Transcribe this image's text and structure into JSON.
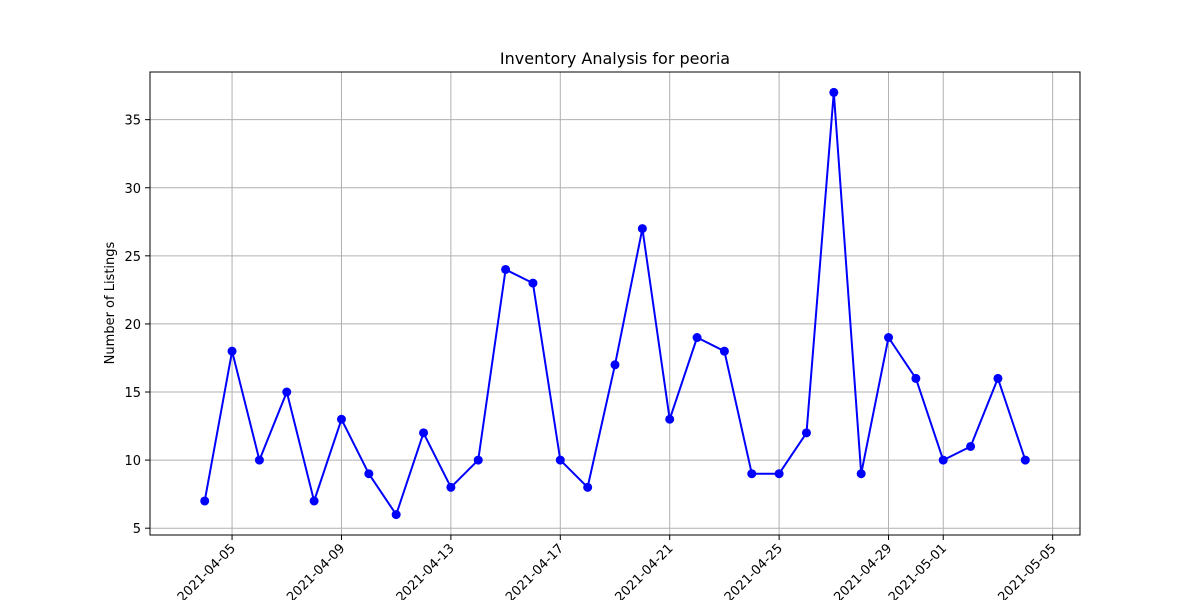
{
  "chart_data": {
    "type": "line",
    "title": "Inventory Analysis for peoria",
    "xlabel": "",
    "ylabel": "Number of Listings",
    "x_type": "date",
    "xlim": [
      "2021-04-02",
      "2021-05-06"
    ],
    "ylim": [
      4.5,
      38.5
    ],
    "x_ticks": [
      "2021-04-05",
      "2021-04-09",
      "2021-04-13",
      "2021-04-17",
      "2021-04-21",
      "2021-04-25",
      "2021-04-29",
      "2021-05-01",
      "2021-05-05"
    ],
    "y_ticks": [
      5,
      10,
      15,
      20,
      25,
      30,
      35
    ],
    "grid": true,
    "legend": false,
    "series": [
      {
        "color": "#0000ff",
        "marker": "circle",
        "points": [
          {
            "x": "2021-04-04",
            "y": 7
          },
          {
            "x": "2021-04-05",
            "y": 18
          },
          {
            "x": "2021-04-06",
            "y": 10
          },
          {
            "x": "2021-04-07",
            "y": 15
          },
          {
            "x": "2021-04-08",
            "y": 7
          },
          {
            "x": "2021-04-09",
            "y": 13
          },
          {
            "x": "2021-04-10",
            "y": 9
          },
          {
            "x": "2021-04-11",
            "y": 6
          },
          {
            "x": "2021-04-12",
            "y": 12
          },
          {
            "x": "2021-04-13",
            "y": 8
          },
          {
            "x": "2021-04-14",
            "y": 10
          },
          {
            "x": "2021-04-15",
            "y": 24
          },
          {
            "x": "2021-04-16",
            "y": 23
          },
          {
            "x": "2021-04-17",
            "y": 10
          },
          {
            "x": "2021-04-18",
            "y": 8
          },
          {
            "x": "2021-04-19",
            "y": 17
          },
          {
            "x": "2021-04-20",
            "y": 27
          },
          {
            "x": "2021-04-21",
            "y": 13
          },
          {
            "x": "2021-04-22",
            "y": 19
          },
          {
            "x": "2021-04-23",
            "y": 18
          },
          {
            "x": "2021-04-24",
            "y": 9
          },
          {
            "x": "2021-04-25",
            "y": 9
          },
          {
            "x": "2021-04-26",
            "y": 12
          },
          {
            "x": "2021-04-27",
            "y": 37
          },
          {
            "x": "2021-04-28",
            "y": 9
          },
          {
            "x": "2021-04-29",
            "y": 19
          },
          {
            "x": "2021-04-30",
            "y": 16
          },
          {
            "x": "2021-05-01",
            "y": 10
          },
          {
            "x": "2021-05-02",
            "y": 11
          },
          {
            "x": "2021-05-03",
            "y": 16
          },
          {
            "x": "2021-05-04",
            "y": 10
          }
        ]
      }
    ]
  },
  "colors": {
    "series_line": "#0000ff",
    "grid": "#b0b0b0",
    "axes": "#000000",
    "background": "#ffffff"
  }
}
